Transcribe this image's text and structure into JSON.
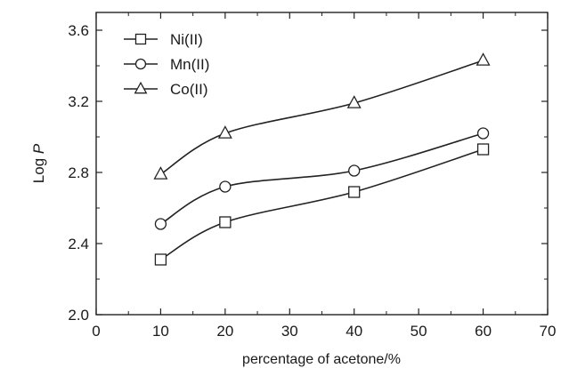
{
  "chart_data": {
    "type": "line",
    "xlabel": "percentage of acetone/%",
    "ylabel_prefix": "Log ",
    "ylabel_var": "P",
    "xlim": [
      0,
      70
    ],
    "ylim": [
      2.0,
      3.7
    ],
    "xticks": [
      0,
      10,
      20,
      30,
      40,
      50,
      60,
      70
    ],
    "xtick_labels": [
      "0",
      "10",
      "20",
      "30",
      "40",
      "50",
      "60",
      "70"
    ],
    "yticks": [
      2.0,
      2.4,
      2.8,
      3.2,
      3.6
    ],
    "ytick_labels": [
      "2.0",
      "2.4",
      "2.8",
      "3.2",
      "3.6"
    ],
    "grid": false,
    "legend_position": "top-left",
    "x": [
      10,
      20,
      40,
      60
    ],
    "series": [
      {
        "name": "Ni(II)",
        "marker": "square",
        "values": [
          2.31,
          2.52,
          2.69,
          2.93
        ]
      },
      {
        "name": "Mn(II)",
        "marker": "circle",
        "values": [
          2.51,
          2.72,
          2.81,
          3.02
        ]
      },
      {
        "name": "Co(II)",
        "marker": "triangle",
        "values": [
          2.79,
          3.02,
          3.19,
          3.43
        ]
      }
    ],
    "colors": {
      "line": "#222222",
      "marker_fill": "#ffffff",
      "axis": "#222222"
    }
  }
}
